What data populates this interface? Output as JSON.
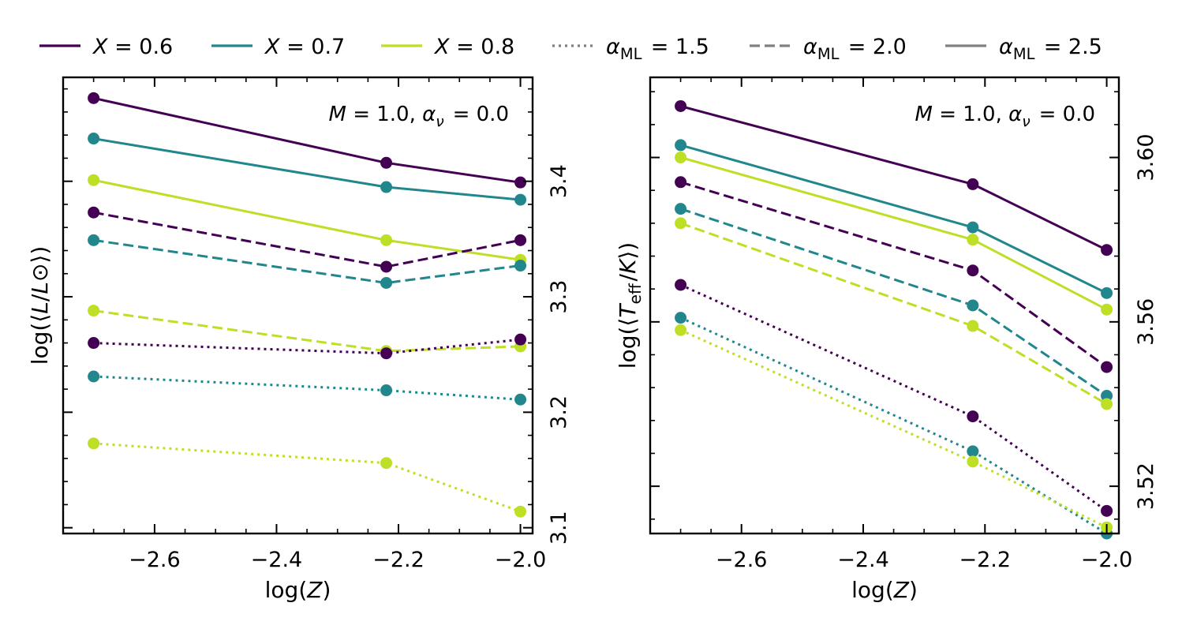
{
  "legend": {
    "entries": [
      {
        "key": "X06",
        "label": "X = 0.6",
        "color": "#440154",
        "dash": "solid"
      },
      {
        "key": "X07",
        "label": "X = 0.7",
        "color": "#21878d",
        "dash": "solid"
      },
      {
        "key": "X08",
        "label": "X = 0.8",
        "color": "#bddf26",
        "dash": "solid"
      },
      {
        "key": "a15",
        "label": "α_ML = 1.5",
        "color": "#808080",
        "dash": "dotted"
      },
      {
        "key": "a20",
        "label": "α_ML = 2.0",
        "color": "#808080",
        "dash": "dashed"
      },
      {
        "key": "a25",
        "label": "α_ML = 2.5",
        "color": "#808080",
        "dash": "solid"
      }
    ]
  },
  "chart_data": [
    {
      "type": "line",
      "xlabel": "log(Z)",
      "ylabel": "log(⟨L/L⊙⟩)",
      "annotation": "M = 1.0, α_ν = 0.0",
      "xlim": [
        -2.75,
        -1.98
      ],
      "ylim": [
        3.095,
        3.49
      ],
      "x_ticks": [
        -2.6,
        -2.4,
        -2.2,
        -2.0
      ],
      "x_tick_labels": [
        "−2.6",
        "−2.4",
        "−2.2",
        "−2.0"
      ],
      "y_ticks": [
        3.1,
        3.2,
        3.3,
        3.4
      ],
      "y_tick_labels": [
        "3.1",
        "3.2",
        "3.3",
        "3.4"
      ],
      "y_axis_side": "right",
      "grid": false,
      "x": [
        -2.7,
        -2.22,
        -2.0
      ],
      "series": [
        {
          "color": "#440154",
          "dash": "solid",
          "values": [
            3.472,
            3.416,
            3.399
          ]
        },
        {
          "color": "#21878d",
          "dash": "solid",
          "values": [
            3.437,
            3.395,
            3.384
          ]
        },
        {
          "color": "#bddf26",
          "dash": "solid",
          "values": [
            3.401,
            3.349,
            3.332
          ]
        },
        {
          "color": "#440154",
          "dash": "dashed",
          "values": [
            3.373,
            3.326,
            3.349
          ]
        },
        {
          "color": "#21878d",
          "dash": "dashed",
          "values": [
            3.349,
            3.312,
            3.327
          ]
        },
        {
          "color": "#bddf26",
          "dash": "dashed",
          "values": [
            3.288,
            3.253,
            3.257
          ]
        },
        {
          "color": "#440154",
          "dash": "dotted",
          "values": [
            3.26,
            3.251,
            3.263
          ]
        },
        {
          "color": "#21878d",
          "dash": "dotted",
          "values": [
            3.231,
            3.219,
            3.211
          ]
        },
        {
          "color": "#bddf26",
          "dash": "dotted",
          "values": [
            3.173,
            3.156,
            3.114
          ]
        }
      ]
    },
    {
      "type": "line",
      "xlabel": "log(Z)",
      "ylabel": "log(⟨T_eff/K⟩)",
      "annotation": "M = 1.0, α_ν = 0.0",
      "xlim": [
        -2.75,
        -1.98
      ],
      "ylim": [
        3.5085,
        3.6195
      ],
      "x_ticks": [
        -2.6,
        -2.4,
        -2.2,
        -2.0
      ],
      "x_tick_labels": [
        "−2.6",
        "−2.4",
        "−2.2",
        "−2.0"
      ],
      "y_ticks": [
        3.52,
        3.56,
        3.6
      ],
      "y_tick_labels": [
        "3.52",
        "3.56",
        "3.60"
      ],
      "y_axis_side": "right",
      "grid": false,
      "x": [
        -2.7,
        -2.22,
        -2.0
      ],
      "series": [
        {
          "color": "#440154",
          "dash": "solid",
          "values": [
            3.6125,
            3.5935,
            3.5775
          ]
        },
        {
          "color": "#21878d",
          "dash": "solid",
          "values": [
            3.603,
            3.583,
            3.567
          ]
        },
        {
          "color": "#bddf26",
          "dash": "solid",
          "values": [
            3.6,
            3.58,
            3.563
          ]
        },
        {
          "color": "#440154",
          "dash": "dashed",
          "values": [
            3.594,
            3.5725,
            3.549
          ]
        },
        {
          "color": "#21878d",
          "dash": "dashed",
          "values": [
            3.5875,
            3.564,
            3.542
          ]
        },
        {
          "color": "#bddf26",
          "dash": "dashed",
          "values": [
            3.584,
            3.559,
            3.54
          ]
        },
        {
          "color": "#440154",
          "dash": "dotted",
          "values": [
            3.569,
            3.537,
            3.514
          ]
        },
        {
          "color": "#21878d",
          "dash": "dotted",
          "values": [
            3.561,
            3.5285,
            3.5085
          ]
        },
        {
          "color": "#bddf26",
          "dash": "dotted",
          "values": [
            3.558,
            3.526,
            3.51
          ]
        }
      ]
    }
  ]
}
